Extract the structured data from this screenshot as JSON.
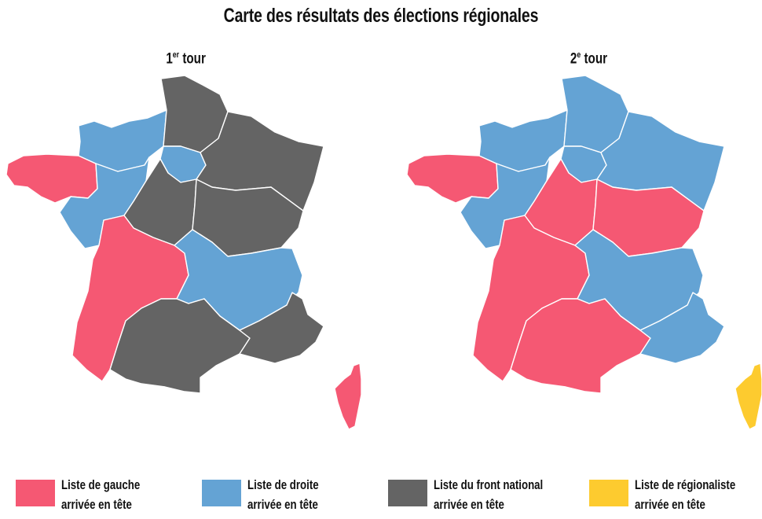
{
  "title": "Carte des résultats des élections régionales",
  "colors": {
    "gauche": "#f55873",
    "droite": "#64a3d4",
    "fn": "#646464",
    "regionaliste": "#fdcb2f"
  },
  "maps": [
    {
      "label_main": "1",
      "label_sup": "er",
      "label_rest": " tour",
      "regions": {
        "bretagne": "gauche",
        "normandie": "droite",
        "hauts_de_france": "fn",
        "ile_de_france": "droite",
        "grand_est": "fn",
        "pays_de_la_loire": "droite",
        "centre": "fn",
        "bourgogne_fc": "fn",
        "nouvelle_aquitaine": "gauche",
        "auvergne_rhone_alpes": "droite",
        "occitanie": "fn",
        "paca": "fn",
        "corse": "gauche"
      }
    },
    {
      "label_main": "2",
      "label_sup": "e",
      "label_rest": " tour",
      "regions": {
        "bretagne": "gauche",
        "normandie": "droite",
        "hauts_de_france": "droite",
        "ile_de_france": "droite",
        "grand_est": "droite",
        "pays_de_la_loire": "droite",
        "centre": "gauche",
        "bourgogne_fc": "gauche",
        "nouvelle_aquitaine": "gauche",
        "auvergne_rhone_alpes": "droite",
        "occitanie": "gauche",
        "paca": "droite",
        "corse": "regionaliste"
      }
    }
  ],
  "legend": [
    {
      "key": "gauche",
      "line1": "Liste de gauche",
      "line2": "arrivée en tête"
    },
    {
      "key": "droite",
      "line1": "Liste de droite",
      "line2": "arrivée en tête"
    },
    {
      "key": "fn",
      "line1": "Liste du front national",
      "line2": "arrivée en tête"
    },
    {
      "key": "regionaliste",
      "line1": "Liste de régionaliste",
      "line2": "arrivée en tête"
    }
  ]
}
